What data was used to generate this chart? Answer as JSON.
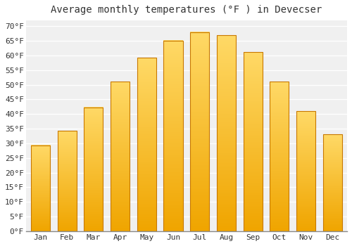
{
  "title": "Average monthly temperatures (°F ) in Devecser",
  "months": [
    "Jan",
    "Feb",
    "Mar",
    "Apr",
    "May",
    "Jun",
    "Jul",
    "Aug",
    "Sep",
    "Oct",
    "Nov",
    "Dec"
  ],
  "values": [
    29.3,
    34.3,
    42.3,
    51.1,
    59.2,
    65.1,
    68.0,
    66.9,
    61.2,
    51.1,
    41.0,
    33.1
  ],
  "bar_color_top": "#FFD966",
  "bar_color_bottom": "#F0A500",
  "bar_edge_color": "#C87800",
  "background_color": "#FFFFFF",
  "plot_bg_color": "#F0F0F0",
  "grid_color": "#FFFFFF",
  "text_color": "#333333",
  "ylim": [
    0,
    72
  ],
  "ytick_step": 5,
  "title_fontsize": 10,
  "tick_fontsize": 8,
  "font_family": "monospace"
}
